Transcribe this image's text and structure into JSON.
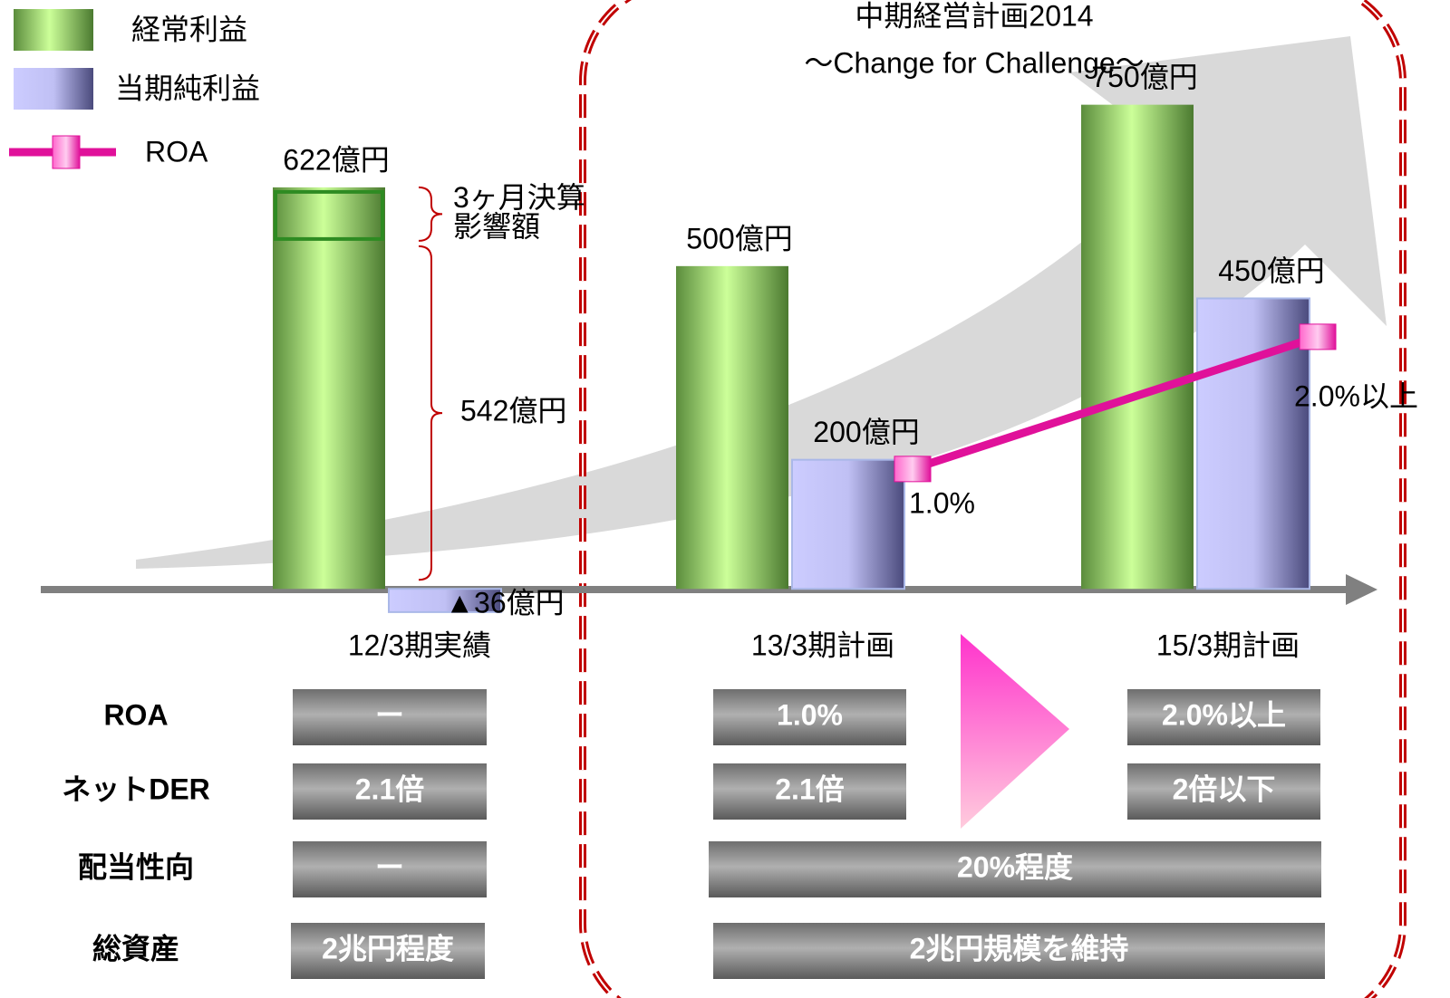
{
  "chart_data": {
    "type": "bar",
    "title": "中期経営計画2014",
    "subtitle": "～Change for Challenge～",
    "categories": [
      "12/3期実績",
      "13/3期計画",
      "15/3期計画"
    ],
    "ylim": [
      -60,
      800
    ],
    "y2lim": [
      -0.2,
      4
    ],
    "series": [
      {
        "name": "経常利益",
        "color": "#8ccf5a",
        "values": [
          622,
          500,
          750
        ],
        "value_labels": [
          "622億円",
          "500億円",
          "750億円"
        ]
      },
      {
        "name": "当期純利益",
        "color": "#9c9ce0",
        "values": [
          -36,
          200,
          450
        ],
        "value_labels": [
          "▲36億円",
          "200億円",
          "450億円"
        ]
      },
      {
        "name": "ROA",
        "type": "line",
        "axis": "y2",
        "color": "#e0119a",
        "values": [
          null,
          1.0,
          2.0
        ],
        "value_labels": [
          null,
          "1.0%",
          "2.0%以上"
        ]
      }
    ],
    "annotations": [
      {
        "value": 542,
        "lines": [
          "542億円"
        ]
      },
      {
        "lines": [
          "3ヶ月決算",
          "影響額"
        ]
      }
    ]
  },
  "table": {
    "rows": [
      [
        "ROA",
        "ー",
        "1.0%",
        "2.0%以上"
      ],
      [
        "ネットDER",
        "2.1倍",
        "2.1倍",
        "2倍以下"
      ],
      [
        "配当性向",
        "ー",
        "20%程度"
      ],
      [
        "総資産",
        "2兆円程度",
        "2兆円規模を維持"
      ]
    ]
  }
}
